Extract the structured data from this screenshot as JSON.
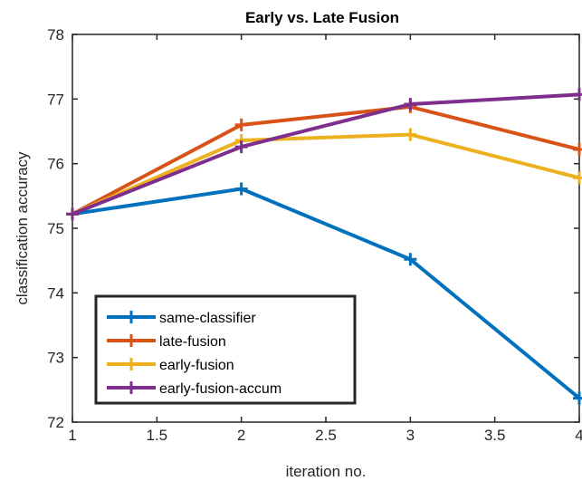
{
  "chart_data": {
    "type": "line",
    "title": "Early vs. Late Fusion",
    "xlabel": "iteration no.",
    "ylabel": "classification accuracy",
    "xlim": [
      1,
      4
    ],
    "ylim": [
      72,
      78
    ],
    "xticks": [
      "1",
      "1.5",
      "2",
      "2.5",
      "3",
      "3.5",
      "4"
    ],
    "yticks": [
      "72",
      "73",
      "74",
      "75",
      "76",
      "77",
      "78"
    ],
    "x": [
      1,
      2,
      3,
      4
    ],
    "grid": false,
    "legend_position": "bottom-left",
    "series": [
      {
        "name": "same-classifier",
        "color": "#0072BD",
        "values": [
          75.22,
          75.61,
          74.52,
          72.37
        ]
      },
      {
        "name": "late-fusion",
        "color": "#D95319",
        "values": [
          75.22,
          76.6,
          76.88,
          76.22
        ]
      },
      {
        "name": "early-fusion",
        "color": "#EDB120",
        "values": [
          75.22,
          76.36,
          76.45,
          75.78
        ]
      },
      {
        "name": "early-fusion-accum",
        "color": "#7E2F8E",
        "values": [
          75.22,
          76.26,
          76.92,
          77.07
        ]
      }
    ]
  }
}
